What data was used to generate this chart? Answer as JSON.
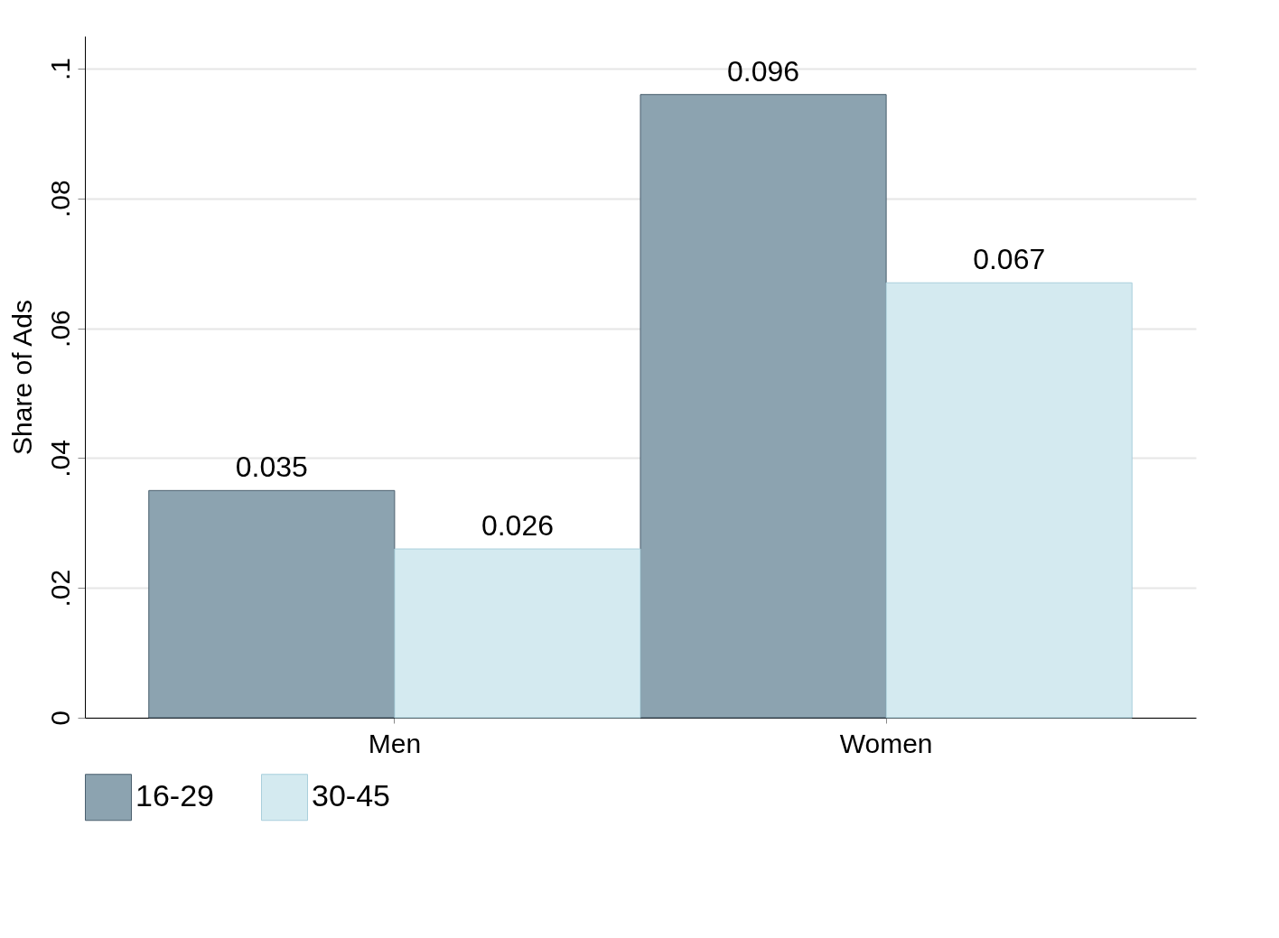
{
  "chart_data": {
    "type": "bar",
    "ylabel": "Share of Ads",
    "categories": [
      "Men",
      "Women"
    ],
    "series": [
      {
        "name": "16-29",
        "color": "#8ca3b0",
        "values": [
          0.035,
          0.096
        ]
      },
      {
        "name": "30-45",
        "color": "#d4eaf0",
        "values": [
          0.026,
          0.067
        ]
      }
    ],
    "ylim": [
      0,
      0.105
    ],
    "yticks": [
      {
        "value": 0,
        "label": "0"
      },
      {
        "value": 0.02,
        "label": ".02"
      },
      {
        "value": 0.04,
        "label": ".04"
      },
      {
        "value": 0.06,
        "label": ".06"
      },
      {
        "value": 0.08,
        "label": ".08"
      },
      {
        "value": 0.1,
        "label": ".1"
      }
    ],
    "grid": "y",
    "legend": "bottom",
    "data_labels": true
  }
}
